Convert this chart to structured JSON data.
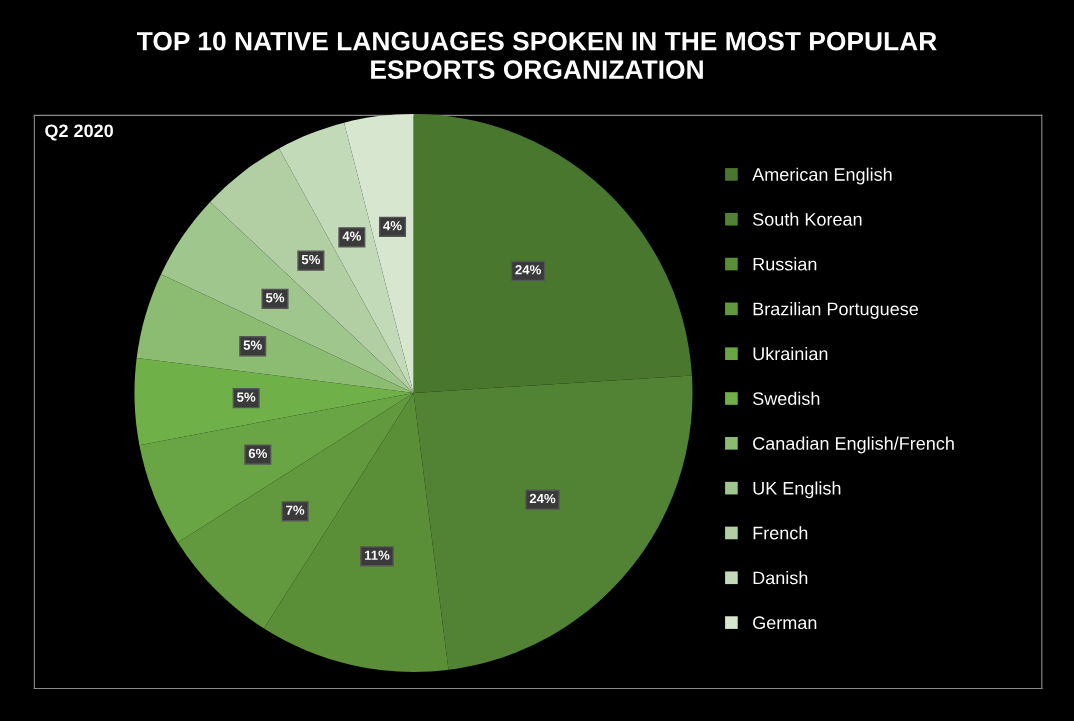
{
  "chart_data": {
    "type": "pie",
    "title": "TOP 10 NATIVE LANGUAGES SPOKEN IN THE MOST POPULAR\nESPORTS ORGANIZATION",
    "annotations": [
      "Q2 2020"
    ],
    "categories": [
      "American English",
      "South Korean",
      "Russian",
      "Brazilian Portuguese",
      "Ukrainian",
      "Swedish",
      "Canadian English/French",
      "UK English",
      "French",
      "Danish",
      "German"
    ],
    "values": [
      24,
      24,
      11,
      7,
      6,
      5,
      5,
      5,
      5,
      4,
      4
    ],
    "value_labels": [
      "24%",
      "24%",
      "11%",
      "7%",
      "6%",
      "5%",
      "5%",
      "5%",
      "5%",
      "4%",
      "4%"
    ],
    "colors": [
      "#4a772e",
      "#528233",
      "#5a8f38",
      "#62993e",
      "#69a544",
      "#6fb049",
      "#8cbb72",
      "#9fc68c",
      "#b1cfa3",
      "#c3dab8",
      "#d6e6cf"
    ],
    "legend": "right"
  }
}
